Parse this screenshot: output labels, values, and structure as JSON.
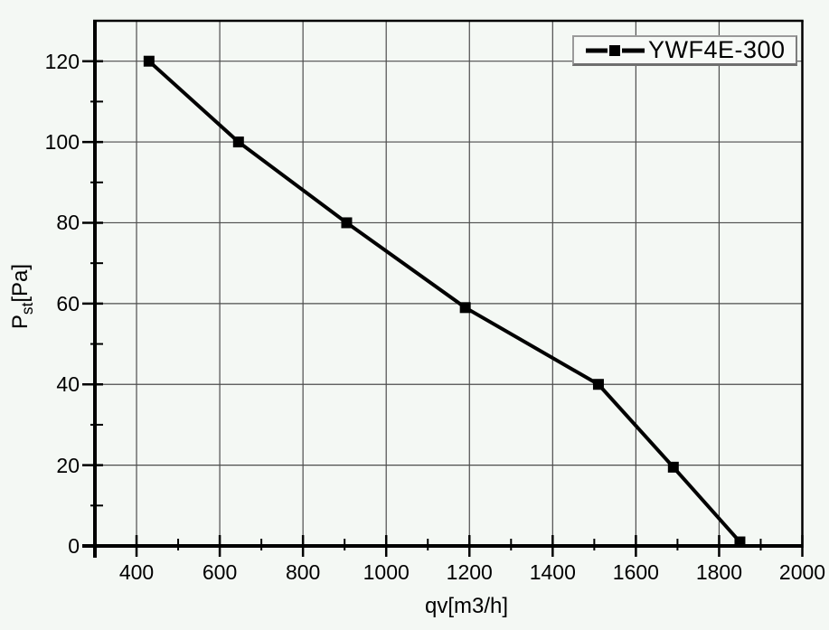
{
  "chart_data": {
    "type": "line",
    "title": "",
    "xlabel": "qv[m3/h]",
    "ylabel": {
      "main": "P",
      "sub": "st",
      "unit": "[Pa]"
    },
    "xlim": [
      300,
      2000
    ],
    "ylim": [
      0,
      130
    ],
    "xticks_major": [
      400,
      600,
      800,
      1000,
      1200,
      1400,
      1600,
      1800,
      2000
    ],
    "xticks_minor": [
      500,
      700,
      900,
      1100,
      1300,
      1500,
      1700,
      1900
    ],
    "yticks_major": [
      0,
      20,
      40,
      60,
      80,
      100,
      120
    ],
    "yticks_minor": [
      10,
      30,
      50,
      70,
      90,
      110
    ],
    "grid": "major-both",
    "legend": {
      "position": "top-right",
      "entries": [
        {
          "label": "YWF4E-300",
          "marker": "filled-square",
          "line": "solid"
        }
      ]
    },
    "series": [
      {
        "name": "YWF4E-300",
        "points": [
          [
            430,
            120
          ],
          [
            645,
            100
          ],
          [
            905,
            80
          ],
          [
            1190,
            59
          ],
          [
            1510,
            40
          ],
          [
            1690,
            19.5
          ],
          [
            1850,
            1
          ]
        ]
      }
    ],
    "colors": {
      "background": "#f4f8f4",
      "axis": "#000000",
      "grid": "#4d4d4d",
      "series": "#000000",
      "legend_border": "#9a9a9a",
      "text": "#000000"
    }
  }
}
